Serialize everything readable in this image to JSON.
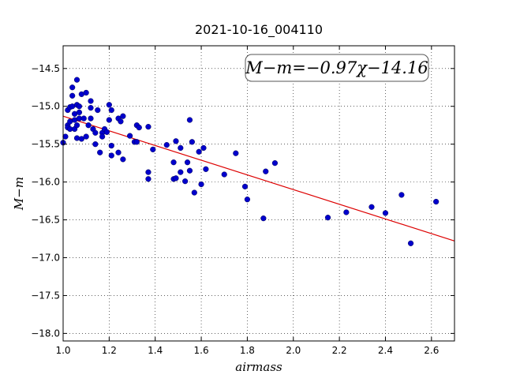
{
  "chart_data": {
    "type": "scatter",
    "title": "2021-10-16_004110",
    "xlabel": "airmass",
    "ylabel": "M−m",
    "xlim": [
      1.0,
      2.7
    ],
    "ylim": [
      -18.1,
      -14.2
    ],
    "y_inverted": true,
    "xticks": [
      "1.0",
      "1.2",
      "1.4",
      "1.6",
      "1.8",
      "2.0",
      "2.2",
      "2.4",
      "2.6"
    ],
    "yticks": [
      "−14.5",
      "−15.0",
      "−15.5",
      "−16.0",
      "−16.5",
      "−17.0",
      "−17.5",
      "−18.0"
    ],
    "grid": true,
    "annotation": "M−m=−0.97χ−14.16",
    "fit": {
      "slope": -0.97,
      "intercept": -14.16
    },
    "colors": {
      "points": "#0000cc",
      "fit_line": "#dd0000"
    },
    "points": [
      [
        1.0,
        -15.48
      ],
      [
        1.01,
        -15.4
      ],
      [
        1.02,
        -15.25
      ],
      [
        1.02,
        -15.28
      ],
      [
        1.02,
        -15.05
      ],
      [
        1.03,
        -15.01
      ],
      [
        1.03,
        -15.2
      ],
      [
        1.03,
        -15.3
      ],
      [
        1.04,
        -14.86
      ],
      [
        1.04,
        -14.75
      ],
      [
        1.04,
        -15.0
      ],
      [
        1.05,
        -15.1
      ],
      [
        1.05,
        -15.18
      ],
      [
        1.05,
        -15.3
      ],
      [
        1.06,
        -14.65
      ],
      [
        1.06,
        -14.98
      ],
      [
        1.06,
        -15.42
      ],
      [
        1.06,
        -15.25
      ],
      [
        1.07,
        -15.0
      ],
      [
        1.07,
        -15.08
      ],
      [
        1.07,
        -15.16
      ],
      [
        1.08,
        -14.84
      ],
      [
        1.08,
        -15.43
      ],
      [
        1.09,
        -15.16
      ],
      [
        1.1,
        -14.82
      ],
      [
        1.1,
        -15.4
      ],
      [
        1.11,
        -15.25
      ],
      [
        1.12,
        -14.93
      ],
      [
        1.12,
        -15.02
      ],
      [
        1.12,
        -15.16
      ],
      [
        1.13,
        -15.3
      ],
      [
        1.14,
        -15.35
      ],
      [
        1.14,
        -15.5
      ],
      [
        1.15,
        -15.05
      ],
      [
        1.16,
        -15.61
      ],
      [
        1.17,
        -15.35
      ],
      [
        1.17,
        -15.4
      ],
      [
        1.18,
        -15.3
      ],
      [
        1.19,
        -15.34
      ],
      [
        1.2,
        -15.18
      ],
      [
        1.2,
        -14.98
      ],
      [
        1.21,
        -15.05
      ],
      [
        1.21,
        -15.52
      ],
      [
        1.21,
        -15.65
      ],
      [
        1.24,
        -15.16
      ],
      [
        1.24,
        -15.61
      ],
      [
        1.25,
        -15.2
      ],
      [
        1.26,
        -15.13
      ],
      [
        1.26,
        -15.7
      ],
      [
        1.29,
        -15.39
      ],
      [
        1.31,
        -15.47
      ],
      [
        1.32,
        -15.47
      ],
      [
        1.32,
        -15.25
      ],
      [
        1.33,
        -15.28
      ],
      [
        1.37,
        -15.27
      ],
      [
        1.37,
        -15.87
      ],
      [
        1.37,
        -15.96
      ],
      [
        1.39,
        -15.57
      ],
      [
        1.45,
        -15.51
      ],
      [
        1.48,
        -15.96
      ],
      [
        1.48,
        -15.74
      ],
      [
        1.49,
        -15.46
      ],
      [
        1.49,
        -15.95
      ],
      [
        1.51,
        -15.87
      ],
      [
        1.51,
        -15.55
      ],
      [
        1.53,
        -15.99
      ],
      [
        1.54,
        -15.74
      ],
      [
        1.55,
        -15.18
      ],
      [
        1.55,
        -15.85
      ],
      [
        1.56,
        -15.47
      ],
      [
        1.57,
        -16.14
      ],
      [
        1.59,
        -15.6
      ],
      [
        1.6,
        -16.03
      ],
      [
        1.61,
        -15.55
      ],
      [
        1.62,
        -15.83
      ],
      [
        1.7,
        -15.9
      ],
      [
        1.75,
        -15.62
      ],
      [
        1.79,
        -16.06
      ],
      [
        1.8,
        -16.23
      ],
      [
        1.87,
        -16.48
      ],
      [
        1.88,
        -15.86
      ],
      [
        1.92,
        -15.75
      ],
      [
        2.15,
        -16.47
      ],
      [
        2.23,
        -16.4
      ],
      [
        2.34,
        -16.33
      ],
      [
        2.4,
        -16.41
      ],
      [
        2.47,
        -16.17
      ],
      [
        2.51,
        -16.81
      ],
      [
        2.62,
        -16.26
      ]
    ]
  }
}
